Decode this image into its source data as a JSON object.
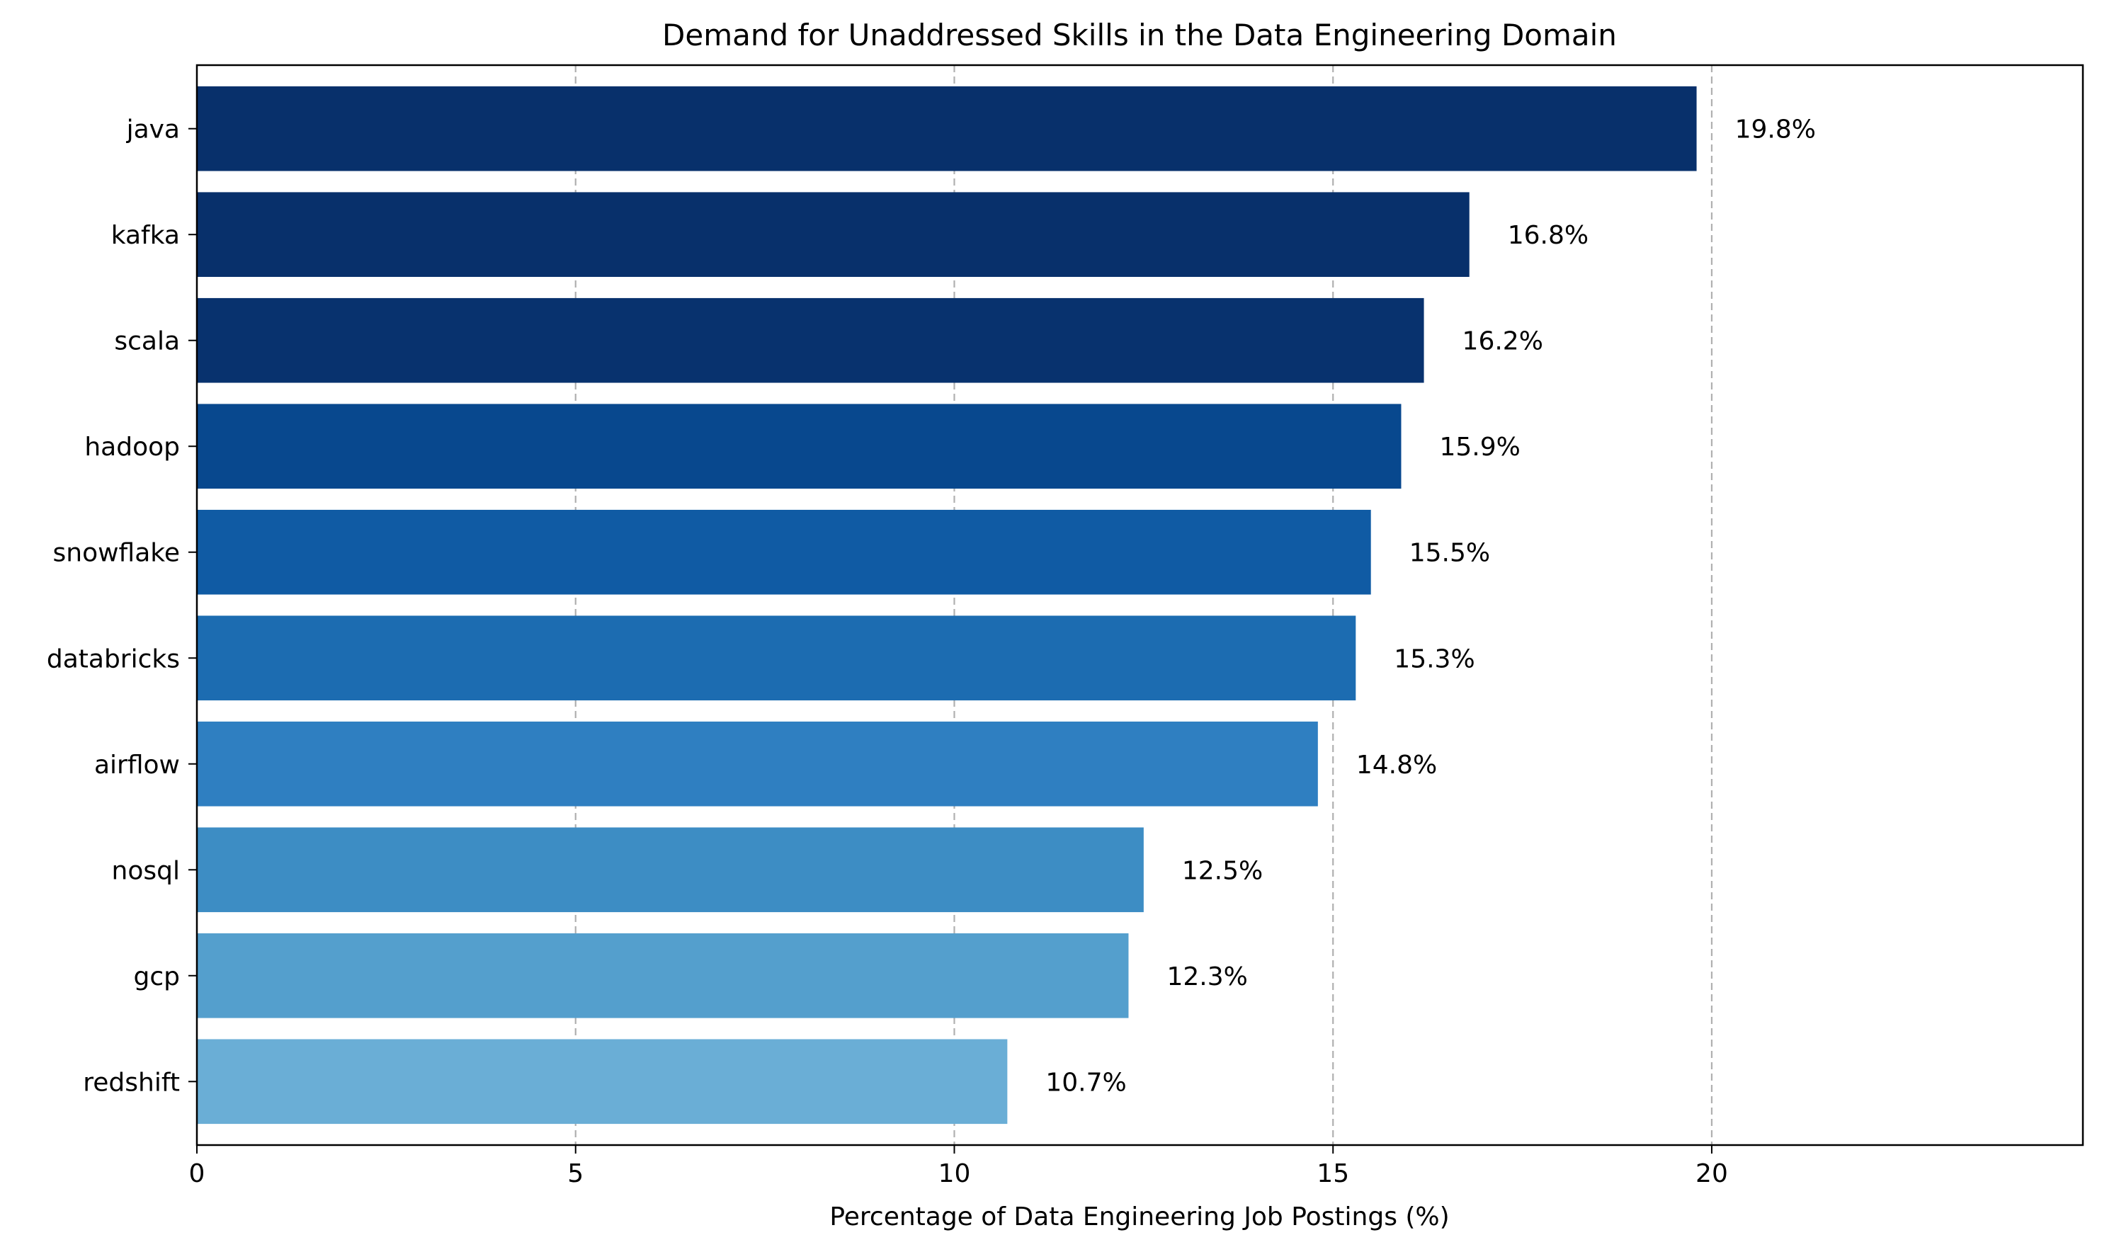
{
  "chart_data": {
    "type": "bar",
    "orientation": "horizontal",
    "title": "Demand for Unaddressed Skills in the Data Engineering Domain",
    "xlabel": "Percentage of Data Engineering Job Postings (%)",
    "ylabel": "",
    "categories": [
      "java",
      "kafka",
      "scala",
      "hadoop",
      "snowflake",
      "databricks",
      "airflow",
      "nosql",
      "gcp",
      "redshift"
    ],
    "values": [
      19.8,
      16.8,
      16.2,
      15.9,
      15.5,
      15.3,
      14.8,
      12.5,
      12.3,
      10.7
    ],
    "data_labels": [
      "19.8%",
      "16.8%",
      "16.2%",
      "15.9%",
      "15.5%",
      "15.3%",
      "14.8%",
      "12.5%",
      "12.3%",
      "10.7%"
    ],
    "colors": [
      "#08306b",
      "#08306b",
      "#08326e",
      "#08488e",
      "#105ba4",
      "#1c6cb1",
      "#2f7fc1",
      "#3d8dc4",
      "#549fcd",
      "#6aaed6"
    ],
    "xlim": [
      0,
      24.9
    ],
    "xticks": [
      0,
      5,
      10,
      15,
      20
    ],
    "xtick_labels": [
      "0",
      "5",
      "10",
      "15",
      "20"
    ],
    "grid": "x-major-dashed",
    "legend": "none"
  }
}
